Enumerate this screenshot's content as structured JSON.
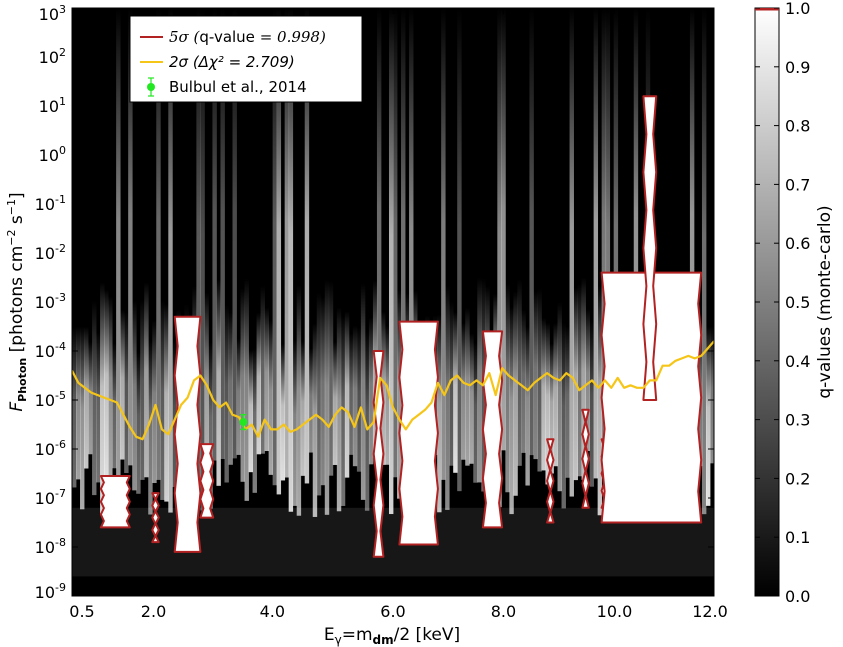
{
  "chart_data": {
    "type": "heatmap",
    "title": "",
    "xlabel": "Eγ=mdm/2 [keV]",
    "xlabel_parts": {
      "main": "E",
      "sub1": "γ",
      "mid": "=m",
      "sub2": "dm",
      "tail": "/2 [keV]"
    },
    "ylabel": "FPhoton [photons cm-2 s-1]",
    "ylabel_parts": {
      "f": "F",
      "sub": "Photon",
      "open": " [photons cm",
      "exp1": "−2",
      "mid": " s",
      "exp2": "−1",
      "close": "]"
    },
    "x_axis": {
      "ticks": [
        {
          "value": 0.5,
          "label": "0.5"
        },
        {
          "value": 2.0,
          "label": "2.0"
        },
        {
          "value": 4.0,
          "label": "4.0"
        },
        {
          "value": 6.0,
          "label": "6.0"
        },
        {
          "value": 8.0,
          "label": "8.0"
        },
        {
          "value": 10.0,
          "label": "10.0"
        },
        {
          "value": 12.0,
          "label": "12.0"
        }
      ],
      "note": "non-uniform energy binning: 0.5 and 2.0 ticks are closer to the left edge"
    },
    "y_axis": {
      "scale": "log",
      "range": [
        -9,
        3
      ],
      "ticks": [
        {
          "exp": 3,
          "base": "10",
          "sup": "3"
        },
        {
          "exp": 2,
          "base": "10",
          "sup": "2"
        },
        {
          "exp": 1,
          "base": "10",
          "sup": "1"
        },
        {
          "exp": 0,
          "base": "10",
          "sup": "0"
        },
        {
          "exp": -1,
          "base": "10",
          "sup": "-1"
        },
        {
          "exp": -2,
          "base": "10",
          "sup": "-2"
        },
        {
          "exp": -3,
          "base": "10",
          "sup": "-3"
        },
        {
          "exp": -4,
          "base": "10",
          "sup": "-4"
        },
        {
          "exp": -5,
          "base": "10",
          "sup": "-5"
        },
        {
          "exp": -6,
          "base": "10",
          "sup": "-6"
        },
        {
          "exp": -7,
          "base": "10",
          "sup": "-7"
        },
        {
          "exp": -8,
          "base": "10",
          "sup": "-8"
        },
        {
          "exp": -9,
          "base": "10",
          "sup": "-9"
        }
      ]
    },
    "colorbar": {
      "label": "q-values (monte-carlo)",
      "range": [
        0.0,
        1.0
      ],
      "ticks": [
        "0.0",
        "0.1",
        "0.2",
        "0.3",
        "0.4",
        "0.5",
        "0.6",
        "0.7",
        "0.8",
        "0.9",
        "1.0"
      ],
      "marker_value": 0.998,
      "marker_color": "#b22222",
      "colormap": "gray (black=0, white=1)"
    },
    "legend": {
      "placement": "top-left",
      "entries": [
        {
          "id": "5sigma",
          "prefix": "5σ (",
          "label": "q-value",
          "suffix": " = 0.998)",
          "color": "#b22222"
        },
        {
          "id": "2sigma",
          "prefix": "2σ (",
          "label": "Δχ²",
          "suffix": " = 2.709)",
          "color": "#f5c518"
        },
        {
          "id": "bulbul",
          "label": "Bulbul et al., 2014",
          "color": "#22e822"
        }
      ]
    },
    "series": [
      {
        "name": "2σ (Δχ² = 2.709)",
        "type": "line",
        "color": "#f5c518",
        "x_frac": [
          0.0,
          0.01,
          0.02,
          0.03,
          0.04,
          0.05,
          0.06,
          0.07,
          0.08,
          0.09,
          0.1,
          0.11,
          0.12,
          0.13,
          0.14,
          0.15,
          0.16,
          0.17,
          0.18,
          0.19,
          0.2,
          0.21,
          0.22,
          0.23,
          0.24,
          0.25,
          0.26,
          0.27,
          0.28,
          0.29,
          0.3,
          0.31,
          0.32,
          0.33,
          0.34,
          0.35,
          0.36,
          0.37,
          0.38,
          0.39,
          0.4,
          0.41,
          0.42,
          0.43,
          0.44,
          0.45,
          0.46,
          0.47,
          0.48,
          0.49,
          0.5,
          0.51,
          0.52,
          0.53,
          0.54,
          0.55,
          0.56,
          0.57,
          0.58,
          0.59,
          0.6,
          0.61,
          0.62,
          0.63,
          0.64,
          0.65,
          0.66,
          0.67,
          0.68,
          0.69,
          0.7,
          0.71,
          0.72,
          0.73,
          0.74,
          0.75,
          0.76,
          0.77,
          0.78,
          0.79,
          0.8,
          0.81,
          0.82,
          0.83,
          0.84,
          0.85,
          0.86,
          0.87,
          0.88,
          0.89,
          0.9,
          0.91,
          0.92,
          0.93,
          0.94,
          0.95,
          0.96,
          0.97,
          0.98,
          0.99,
          1.0
        ],
        "log10_flux": [
          -4.4,
          -4.65,
          -4.75,
          -4.85,
          -4.9,
          -4.95,
          -5.0,
          -5.05,
          -5.3,
          -5.55,
          -5.75,
          -5.8,
          -5.5,
          -5.1,
          -5.6,
          -5.7,
          -5.4,
          -5.1,
          -4.95,
          -4.6,
          -4.5,
          -4.7,
          -5.0,
          -5.15,
          -5.05,
          -5.3,
          -5.35,
          -5.6,
          -5.5,
          -5.75,
          -5.4,
          -5.6,
          -5.6,
          -5.5,
          -5.65,
          -5.6,
          -5.5,
          -5.4,
          -5.3,
          -5.4,
          -5.55,
          -5.3,
          -5.15,
          -5.25,
          -5.55,
          -5.15,
          -5.6,
          -5.45,
          -4.55,
          -4.7,
          -5.15,
          -5.4,
          -5.6,
          -5.4,
          -5.3,
          -5.2,
          -5.05,
          -4.65,
          -4.9,
          -4.6,
          -4.5,
          -4.65,
          -4.7,
          -4.6,
          -4.7,
          -4.45,
          -4.9,
          -4.35,
          -4.5,
          -4.6,
          -4.7,
          -4.8,
          -4.65,
          -4.55,
          -4.45,
          -4.55,
          -4.6,
          -4.45,
          -4.55,
          -4.8,
          -4.7,
          -4.6,
          -4.75,
          -4.6,
          -4.75,
          -4.55,
          -4.75,
          -4.7,
          -4.75,
          -4.75,
          -4.6,
          -4.6,
          -4.3,
          -4.3,
          -4.2,
          -4.15,
          -4.1,
          -4.15,
          -4.1,
          -3.95,
          -3.8
        ]
      },
      {
        "name": "Bulbul et al., 2014",
        "type": "errorbar",
        "color": "#22e822",
        "x_frac": 0.267,
        "log10_flux": -5.45,
        "log10_err_low": -5.6,
        "log10_err_high": -5.3
      }
    ],
    "contour_5sigma": {
      "color": "#b22222",
      "regions_xfrac_log10": [
        {
          "x0": 0.045,
          "x1": 0.09,
          "top": -6.55,
          "bottom": -7.6
        },
        {
          "x0": 0.125,
          "x1": 0.135,
          "top": -6.9,
          "bottom": -7.9
        },
        {
          "x0": 0.16,
          "x1": 0.2,
          "top": -3.3,
          "bottom": -8.1
        },
        {
          "x0": 0.2,
          "x1": 0.22,
          "top": -5.9,
          "bottom": -7.4
        },
        {
          "x0": 0.47,
          "x1": 0.485,
          "top": -4.0,
          "bottom": -8.2
        },
        {
          "x0": 0.51,
          "x1": 0.57,
          "top": -3.4,
          "bottom": -7.95
        },
        {
          "x0": 0.64,
          "x1": 0.67,
          "top": -3.6,
          "bottom": -7.6
        },
        {
          "x0": 0.74,
          "x1": 0.75,
          "top": -5.8,
          "bottom": -7.5
        },
        {
          "x0": 0.795,
          "x1": 0.805,
          "top": -5.2,
          "bottom": -7.2
        },
        {
          "x0": 0.825,
          "x1": 0.835,
          "top": -5.8,
          "bottom": -7.2
        },
        {
          "x0": 0.825,
          "x1": 0.98,
          "top": -2.4,
          "bottom": -7.5
        },
        {
          "x0": 0.89,
          "x1": 0.91,
          "top": 1.2,
          "bottom": -5.0
        }
      ]
    }
  }
}
